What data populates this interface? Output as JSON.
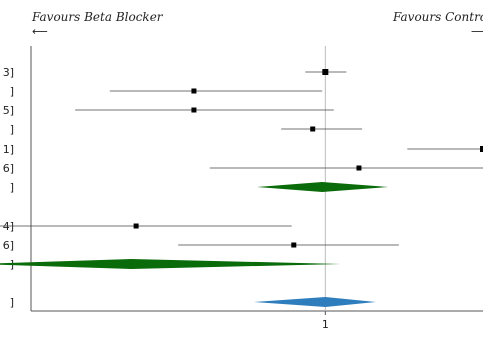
{
  "chart_data": {
    "type": "forest",
    "x_reference": 1,
    "xlim": [
      -1.8,
      2.5
    ],
    "x_ticks": [
      {
        "value": 1,
        "label": "1"
      }
    ],
    "favours_left": "Favours Beta Blocker",
    "favours_right": "Favours Control",
    "arrow_left": "⟵",
    "arrow_right": "⟶",
    "row_label_fragments": [
      "3]",
      "]",
      "5]",
      "]",
      "1]",
      "6]",
      "]",
      "4]",
      "6]",
      "]",
      "]"
    ],
    "studies": [
      {
        "estimate": 1.0,
        "lower": 0.81,
        "upper": 1.2,
        "group": 1
      },
      {
        "estimate": -0.25,
        "lower": -1.05,
        "upper": 0.97
      },
      {
        "estimate": -0.25,
        "lower": -1.38,
        "upper": 1.08
      },
      {
        "estimate": 0.88,
        "lower": 0.58,
        "upper": 1.35
      },
      {
        "estimate": 2.5,
        "lower": 1.78,
        "upper": 3.62
      },
      {
        "estimate": 1.32,
        "lower": -0.1,
        "upper": 2.98
      }
    ],
    "subgroup_1": {
      "estimate": 0.97,
      "lower": 0.35,
      "upper": 1.6
    },
    "studies_group2": [
      {
        "estimate": -0.8,
        "lower": -2.3,
        "upper": 0.68
      },
      {
        "estimate": 0.7,
        "lower": -0.4,
        "upper": 1.7
      }
    ],
    "subgroup_2": {
      "estimate": -0.85,
      "lower": -2.3,
      "upper": 1.15
    },
    "overall": {
      "estimate": 1.0,
      "lower": 0.32,
      "upper": 1.48
    },
    "colors": {
      "point": "#000000",
      "ci_line": "#444444",
      "subgroup_diamond": "#0a6b0a",
      "overall_diamond": "#2e7dbd",
      "reference_line": "#bbbbbb",
      "frame": "#555555"
    },
    "grid": false
  }
}
